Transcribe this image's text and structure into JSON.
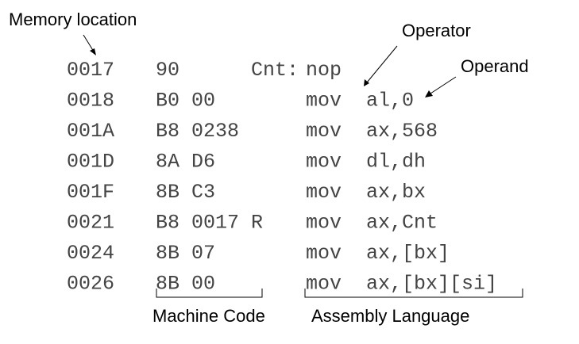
{
  "labels": {
    "memory_location": "Memory location",
    "operator": "Operator",
    "operand": "Operand",
    "machine_code": "Machine Code",
    "assembly_language": "Assembly Language"
  },
  "rows": [
    {
      "address": "0017",
      "machine": "90",
      "label": "Cnt:",
      "mnemonic": "nop",
      "operands": ""
    },
    {
      "address": "0018",
      "machine": "B0 00",
      "label": "",
      "mnemonic": "mov",
      "operands": "al,0"
    },
    {
      "address": "001A",
      "machine": "B8 0238",
      "label": "",
      "mnemonic": "mov",
      "operands": "ax,568"
    },
    {
      "address": "001D",
      "machine": "8A D6",
      "label": "",
      "mnemonic": "mov",
      "operands": "dl,dh"
    },
    {
      "address": "001F",
      "machine": "8B C3",
      "label": "",
      "mnemonic": "mov",
      "operands": "ax,bx"
    },
    {
      "address": "0021",
      "machine": "B8 0017 R",
      "label": "",
      "mnemonic": "mov",
      "operands": "ax,Cnt"
    },
    {
      "address": "0024",
      "machine": "8B 07",
      "label": "",
      "mnemonic": "mov",
      "operands": "ax,[bx]"
    },
    {
      "address": "0026",
      "machine": "8B 00",
      "label": "",
      "mnemonic": "mov",
      "operands": "ax,[bx][si]"
    }
  ]
}
